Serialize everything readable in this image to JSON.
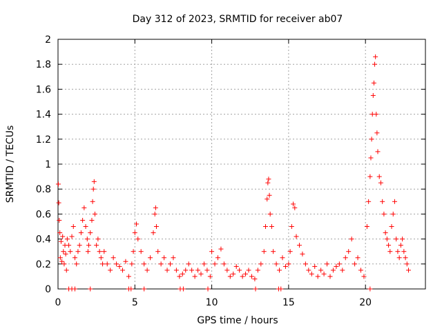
{
  "chart_data": {
    "type": "scatter",
    "title": "Day 312 of 2023, SRMTID for receiver ab07",
    "xlabel": "GPS time / hours",
    "ylabel": "SRMTID / TECUs",
    "xlim": [
      0,
      23.9
    ],
    "ylim": [
      0,
      2
    ],
    "x_ticks": [
      0,
      5,
      10,
      15,
      20
    ],
    "x_tick_labels": [
      "0",
      "5",
      "10",
      "15",
      "20"
    ],
    "y_ticks": [
      0,
      0.2,
      0.4,
      0.6,
      0.8,
      1,
      1.2,
      1.4,
      1.6,
      1.8,
      2
    ],
    "y_tick_labels": [
      "0",
      "0.2",
      "0.4",
      "0.6",
      "0.8",
      "1",
      "1.2",
      "1.4",
      "1.6",
      "1.8",
      "2"
    ],
    "grid": true,
    "marker": "+",
    "series": [
      {
        "name": "SRMTID",
        "color": "#ff0000",
        "x": [
          0.02,
          0.05,
          0.08,
          0.12,
          0.15,
          0.2,
          0.25,
          0.3,
          0.35,
          0.4,
          0.45,
          0.5,
          0.55,
          0.6,
          0.7,
          0.8,
          0.9,
          1.0,
          1.1,
          1.2,
          1.3,
          1.4,
          1.5,
          1.6,
          1.7,
          1.8,
          1.9,
          1.95,
          2.0,
          2.1,
          2.2,
          2.25,
          2.3,
          2.35,
          2.4,
          2.5,
          2.6,
          2.7,
          2.8,
          2.9,
          3.0,
          3.2,
          3.4,
          3.6,
          3.8,
          4.0,
          4.2,
          4.4,
          4.6,
          4.8,
          4.9,
          5.0,
          5.1,
          5.2,
          5.4,
          5.6,
          5.8,
          6.0,
          6.2,
          6.3,
          6.35,
          6.4,
          6.5,
          6.7,
          6.9,
          7.1,
          7.3,
          7.5,
          7.7,
          7.9,
          8.1,
          8.3,
          8.5,
          8.7,
          8.9,
          9.1,
          9.3,
          9.5,
          9.7,
          9.9,
          10.0,
          10.2,
          10.4,
          10.6,
          10.8,
          11.0,
          11.2,
          11.4,
          11.6,
          11.8,
          12.0,
          12.2,
          12.4,
          12.6,
          12.8,
          13.0,
          13.2,
          13.4,
          13.5,
          13.6,
          13.65,
          13.7,
          13.75,
          13.8,
          13.9,
          14.0,
          14.2,
          14.4,
          14.6,
          14.8,
          15.0,
          15.1,
          15.2,
          15.3,
          15.4,
          15.5,
          15.7,
          15.9,
          16.1,
          16.3,
          16.5,
          16.7,
          16.9,
          17.1,
          17.3,
          17.5,
          17.7,
          17.9,
          18.1,
          18.3,
          18.5,
          18.7,
          18.9,
          19.1,
          19.3,
          19.5,
          19.7,
          19.9,
          20.1,
          20.2,
          20.3,
          20.35,
          20.4,
          20.45,
          20.5,
          20.55,
          20.6,
          20.65,
          20.7,
          20.75,
          20.8,
          20.9,
          21.0,
          21.1,
          21.2,
          21.3,
          21.4,
          21.5,
          21.6,
          21.7,
          21.8,
          21.9,
          22.0,
          22.1,
          22.2,
          22.3,
          22.4,
          22.5,
          22.6,
          22.7,
          22.8,
          0.7,
          0.9,
          1.1,
          2.1,
          4.6,
          4.75,
          5.6,
          7.95,
          8.15,
          9.75,
          12.85,
          14.35,
          14.5,
          20.3
        ],
        "y": [
          0.84,
          0.69,
          0.55,
          0.45,
          0.25,
          0.38,
          0.22,
          0.42,
          0.3,
          0.2,
          0.35,
          0.28,
          0.15,
          0.4,
          0.35,
          0.3,
          0.42,
          0.5,
          0.25,
          0.2,
          0.3,
          0.35,
          0.45,
          0.55,
          0.65,
          0.5,
          0.4,
          0.3,
          0.35,
          0.45,
          0.55,
          0.7,
          0.8,
          0.86,
          0.6,
          0.35,
          0.4,
          0.3,
          0.25,
          0.2,
          0.3,
          0.2,
          0.15,
          0.25,
          0.2,
          0.18,
          0.15,
          0.22,
          0.1,
          0.2,
          0.3,
          0.45,
          0.52,
          0.4,
          0.3,
          0.2,
          0.15,
          0.25,
          0.45,
          0.6,
          0.65,
          0.5,
          0.3,
          0.2,
          0.25,
          0.15,
          0.2,
          0.25,
          0.15,
          0.1,
          0.12,
          0.15,
          0.2,
          0.15,
          0.1,
          0.15,
          0.12,
          0.2,
          0.15,
          0.1,
          0.3,
          0.2,
          0.25,
          0.32,
          0.2,
          0.15,
          0.1,
          0.12,
          0.18,
          0.15,
          0.1,
          0.12,
          0.15,
          0.1,
          0.08,
          0.15,
          0.2,
          0.3,
          0.5,
          0.72,
          0.85,
          0.88,
          0.75,
          0.6,
          0.5,
          0.3,
          0.2,
          0.15,
          0.25,
          0.18,
          0.2,
          0.3,
          0.5,
          0.68,
          0.65,
          0.42,
          0.35,
          0.28,
          0.2,
          0.15,
          0.12,
          0.18,
          0.1,
          0.15,
          0.12,
          0.2,
          0.1,
          0.15,
          0.18,
          0.2,
          0.15,
          0.25,
          0.3,
          0.4,
          0.2,
          0.25,
          0.15,
          0.1,
          0.5,
          0.7,
          0.9,
          1.05,
          1.2,
          1.4,
          1.55,
          1.65,
          1.8,
          1.86,
          1.4,
          1.25,
          1.1,
          0.9,
          0.85,
          0.7,
          0.6,
          0.45,
          0.4,
          0.35,
          0.3,
          0.5,
          0.6,
          0.7,
          0.4,
          0.3,
          0.25,
          0.35,
          0.4,
          0.3,
          0.25,
          0.2,
          0.15,
          0,
          0,
          0,
          0,
          0,
          0,
          0,
          0,
          0,
          0,
          0,
          0,
          0,
          0
        ]
      }
    ]
  }
}
